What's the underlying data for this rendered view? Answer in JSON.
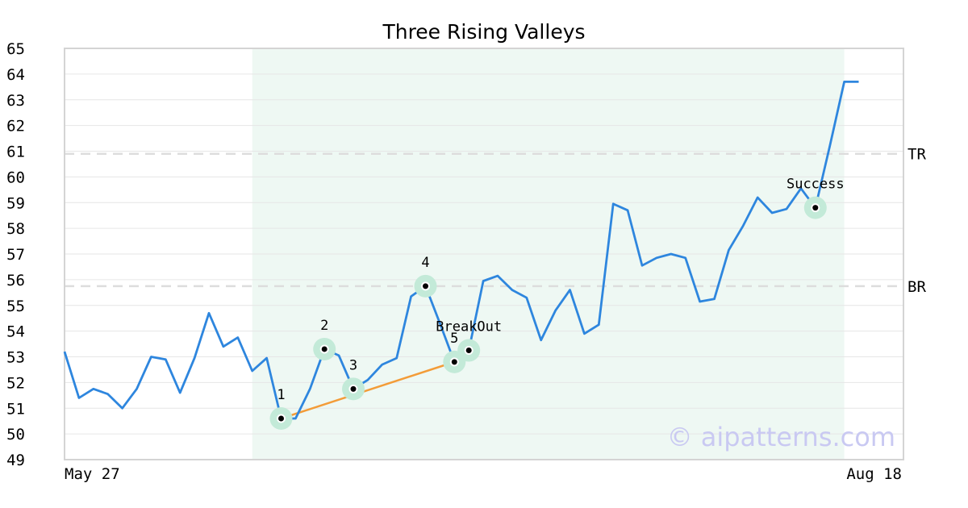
{
  "chart_data": {
    "type": "line",
    "title": "Three Rising Valleys",
    "ylim": [
      49,
      65
    ],
    "yticks": [
      49,
      50,
      51,
      52,
      53,
      54,
      55,
      56,
      57,
      58,
      59,
      60,
      61,
      62,
      63,
      64,
      65
    ],
    "x_labels": {
      "start": "May 27",
      "end": "Aug 18"
    },
    "grid": true,
    "series": [
      {
        "color": "#2e86de",
        "values": [
          53.2,
          51.4,
          51.75,
          51.55,
          51.0,
          51.75,
          53.0,
          52.9,
          51.6,
          52.95,
          54.7,
          53.4,
          53.75,
          52.45,
          52.95,
          50.6,
          50.6,
          51.75,
          53.3,
          53.05,
          51.75,
          52.1,
          52.7,
          52.95,
          55.35,
          55.75,
          54.3,
          52.8,
          53.25,
          55.95,
          56.15,
          55.6,
          55.3,
          53.65,
          54.8,
          55.6,
          53.9,
          54.25,
          58.95,
          58.7,
          56.55,
          56.85,
          57.0,
          56.85,
          55.15,
          55.25,
          57.15,
          58.1,
          59.2,
          58.6,
          58.75,
          59.55,
          58.8,
          61.2,
          63.7,
          63.7
        ]
      }
    ],
    "pattern_window": {
      "start_index": 13,
      "end_index": 54,
      "color": "#eef8f3"
    },
    "levels": [
      {
        "label": "TR",
        "value": 60.9
      },
      {
        "label": "BR",
        "value": 55.75
      }
    ],
    "trendline": {
      "color": "#f39c38",
      "points": [
        [
          15,
          50.6
        ],
        [
          27,
          52.8
        ]
      ]
    },
    "annotations": [
      {
        "label": "1",
        "index": 15,
        "value": 50.6,
        "label_pos": "above"
      },
      {
        "label": "2",
        "index": 18,
        "value": 53.3,
        "label_pos": "above"
      },
      {
        "label": "3",
        "index": 20,
        "value": 51.75,
        "label_pos": "above"
      },
      {
        "label": "4",
        "index": 25,
        "value": 55.75,
        "label_pos": "above"
      },
      {
        "label": "5",
        "index": 27,
        "value": 52.8,
        "label_pos": "above"
      },
      {
        "label": "BreakOut",
        "index": 28,
        "value": 53.25,
        "label_pos": "above"
      },
      {
        "label": "Success",
        "index": 52,
        "value": 58.8,
        "label_pos": "above"
      }
    ],
    "marker_halo_color": "#c3ead8"
  },
  "watermark": "© aipatterns.com"
}
